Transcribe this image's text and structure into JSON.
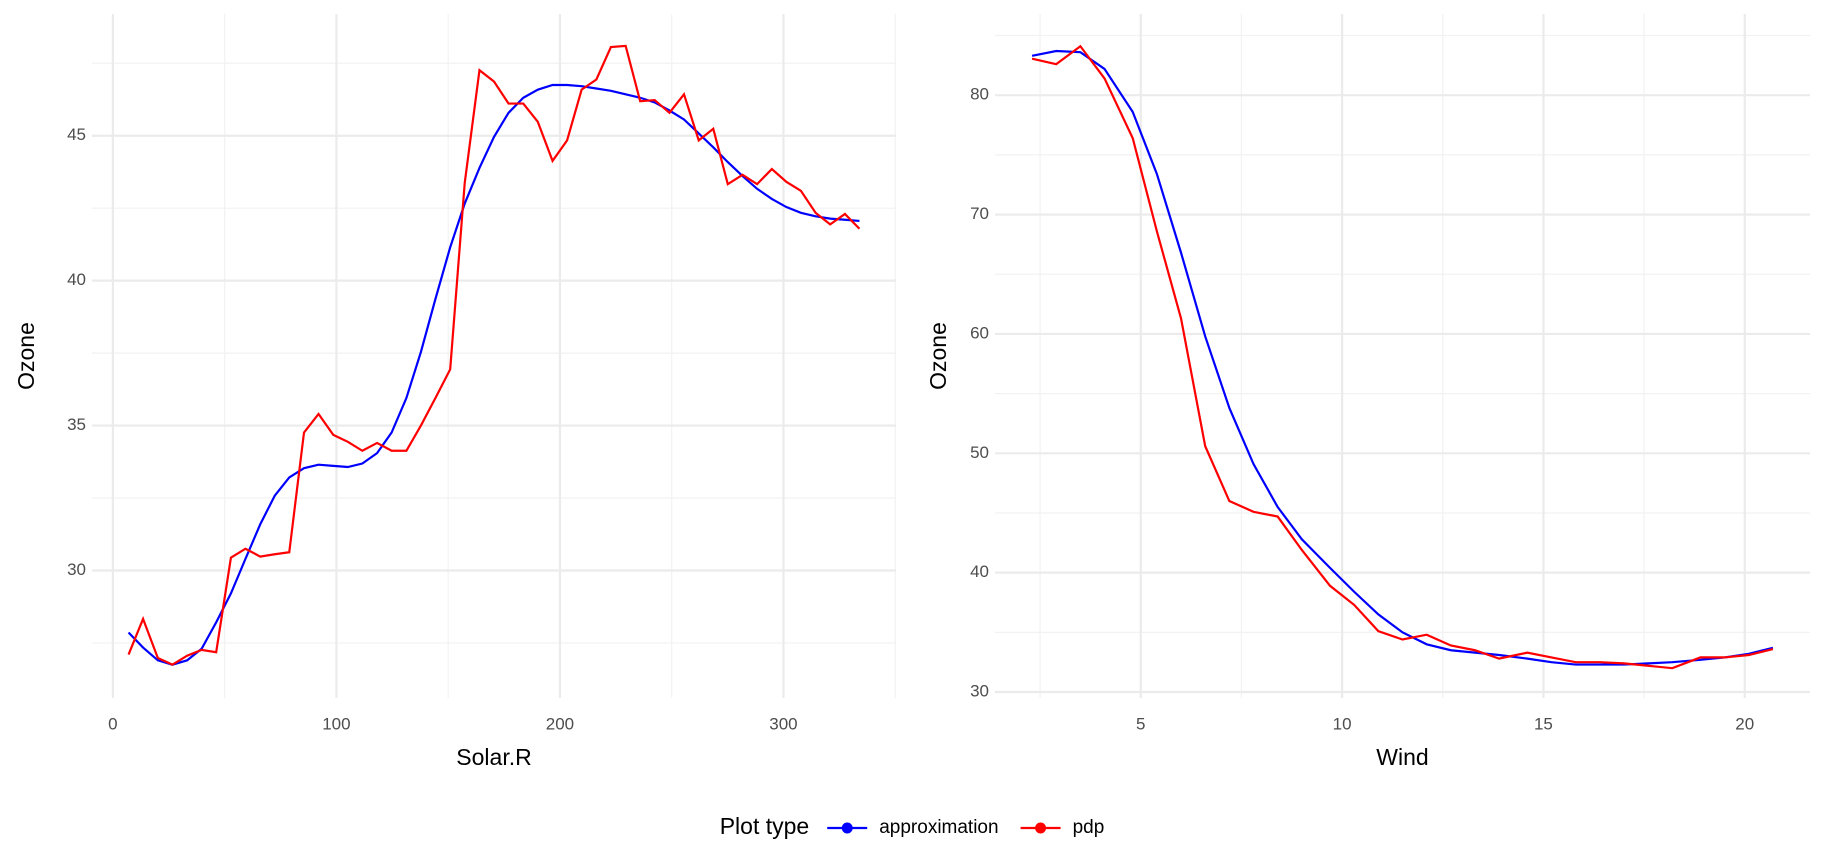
{
  "chart_data": [
    {
      "type": "line",
      "xlabel": "Solar.R",
      "ylabel": "Ozone",
      "x": [
        7.0,
        13.5,
        20.1,
        26.6,
        33.2,
        39.7,
        46.2,
        52.8,
        59.3,
        65.9,
        72.4,
        78.9,
        85.5,
        92.0,
        98.6,
        105.1,
        111.6,
        118.2,
        124.7,
        131.3,
        137.8,
        144.3,
        150.9,
        157.4,
        164.0,
        170.5,
        177.0,
        183.6,
        190.1,
        196.7,
        203.2,
        209.7,
        216.3,
        222.8,
        229.4,
        235.9,
        242.4,
        249.0,
        255.5,
        262.1,
        268.6,
        275.1,
        281.7,
        288.2,
        294.8,
        301.3,
        307.8,
        314.4,
        320.9,
        327.5,
        334.0
      ],
      "series": [
        {
          "name": "approximation",
          "color": "#0000ff",
          "values": [
            27.86,
            27.34,
            26.9,
            26.75,
            26.9,
            27.3,
            28.21,
            29.21,
            30.4,
            31.59,
            32.58,
            33.21,
            33.53,
            33.65,
            33.61,
            33.57,
            33.69,
            34.05,
            34.76,
            35.95,
            37.54,
            39.37,
            41.15,
            42.66,
            43.89,
            44.96,
            45.79,
            46.31,
            46.59,
            46.75,
            46.75,
            46.71,
            46.63,
            46.55,
            46.43,
            46.31,
            46.15,
            45.87,
            45.56,
            45.08,
            44.6,
            44.09,
            43.61,
            43.17,
            42.82,
            42.54,
            42.34,
            42.22,
            42.14,
            42.1,
            42.06
          ]
        },
        {
          "name": "pdp",
          "color": "#ff0000",
          "values": [
            27.1,
            28.33,
            26.98,
            26.75,
            27.06,
            27.26,
            27.18,
            30.44,
            30.75,
            30.48,
            30.56,
            30.63,
            34.76,
            35.4,
            34.68,
            34.44,
            34.13,
            34.4,
            34.13,
            34.13,
            35.0,
            35.95,
            36.94,
            43.37,
            47.26,
            46.87,
            46.11,
            46.11,
            45.48,
            44.13,
            44.84,
            46.59,
            46.94,
            48.06,
            48.1,
            46.19,
            46.23,
            45.79,
            46.43,
            44.84,
            45.24,
            43.33,
            43.65,
            43.33,
            43.85,
            43.41,
            43.1,
            42.34,
            41.94,
            42.3,
            41.79
          ]
        }
      ],
      "xlim": [
        -9.35,
        350.35
      ],
      "xticks": [
        0,
        100,
        200,
        300
      ],
      "minor_xticks": [
        50,
        150,
        250,
        350
      ],
      "ylim": [
        25.6,
        49.2
      ],
      "yticks": [
        30,
        35,
        40,
        45
      ],
      "minor_yticks": [
        27.5,
        32.5,
        37.5,
        42.5,
        47.5
      ],
      "grid": true
    },
    {
      "type": "line",
      "xlabel": "Wind",
      "ylabel": "Ozone",
      "x": [
        2.3,
        2.9,
        3.5,
        4.1,
        4.8,
        5.4,
        6.0,
        6.6,
        7.2,
        7.8,
        8.4,
        9.0,
        9.7,
        10.3,
        10.9,
        11.5,
        12.1,
        12.7,
        13.3,
        13.9,
        14.6,
        15.2,
        15.8,
        16.4,
        17.0,
        17.6,
        18.2,
        18.9,
        19.5,
        20.1,
        20.7
      ],
      "series": [
        {
          "name": "approximation",
          "color": "#0000ff",
          "values": [
            83.3,
            83.7,
            83.6,
            82.2,
            78.6,
            73.4,
            66.8,
            59.8,
            53.8,
            49.1,
            45.5,
            42.8,
            40.4,
            38.4,
            36.5,
            35.0,
            34.0,
            33.5,
            33.3,
            33.1,
            32.8,
            32.5,
            32.3,
            32.3,
            32.3,
            32.4,
            32.5,
            32.7,
            32.9,
            33.2,
            33.7
          ]
        },
        {
          "name": "pdp",
          "color": "#ff0000",
          "values": [
            83.06,
            82.6,
            84.1,
            81.4,
            76.4,
            68.6,
            61.3,
            50.6,
            46.0,
            45.1,
            44.7,
            41.9,
            38.9,
            37.3,
            35.1,
            34.4,
            34.8,
            33.9,
            33.5,
            32.8,
            33.3,
            32.9,
            32.5,
            32.5,
            32.4,
            32.2,
            32.0,
            32.9,
            32.9,
            33.1,
            33.6
          ]
        }
      ],
      "xlim": [
        1.38,
        21.62
      ],
      "xticks": [
        5,
        10,
        15,
        20
      ],
      "minor_xticks": [
        2.5,
        7.5,
        12.5,
        17.5
      ],
      "ylim": [
        29.5,
        86.8
      ],
      "yticks": [
        30,
        40,
        50,
        60,
        70,
        80
      ],
      "minor_yticks": [
        35,
        45,
        55,
        65,
        75,
        85
      ],
      "grid": true
    }
  ],
  "legend": {
    "title": "Plot type",
    "position": "bottom"
  }
}
